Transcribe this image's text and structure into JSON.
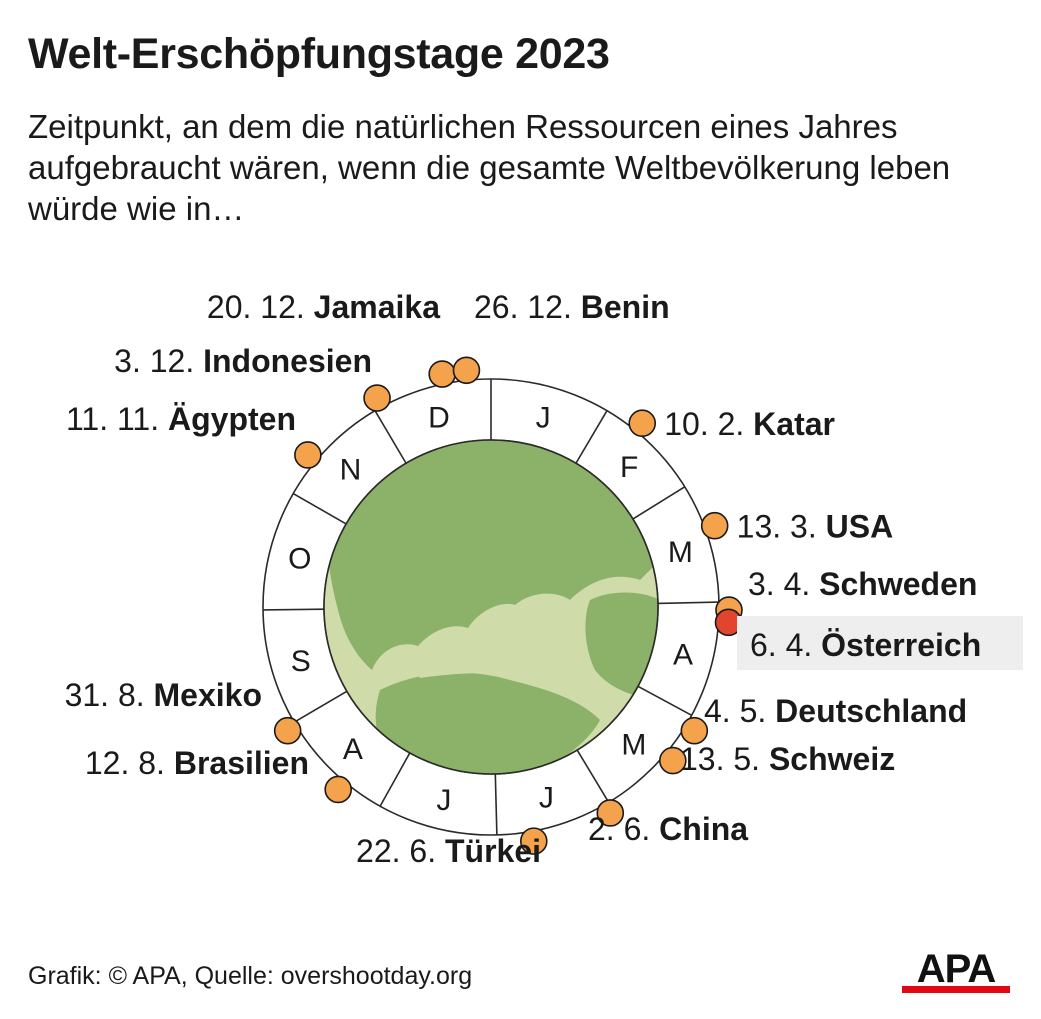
{
  "title": "Welt-Erschöpfungstage 2023",
  "subtitle": "Zeitpunkt, an dem die natürlichen Ressourcen eines Jahres aufgebraucht wären, wenn die gesamte Weltbevölkerung leben würde wie in…",
  "footer": "Grafik: © APA, Quelle: overshootday.org",
  "logo_text": "APA",
  "colors": {
    "marker": "#f4a24c",
    "highlight_marker": "#e1452f",
    "highlight_bg": "#eeeeee",
    "globe_land": "#8cb26a",
    "globe_sea": "#cfdcaa",
    "logo_bar": "#e30613"
  },
  "chart_data": {
    "type": "radial-calendar",
    "year": 2023,
    "months": [
      "J",
      "F",
      "M",
      "A",
      "M",
      "J",
      "J",
      "A",
      "S",
      "O",
      "N",
      "D"
    ],
    "points": [
      {
        "date": "10. 2.",
        "country": "Katar",
        "day_of_year": 41
      },
      {
        "date": "13. 3.",
        "country": "USA",
        "day_of_year": 72
      },
      {
        "date": "3. 4.",
        "country": "Schweden",
        "day_of_year": 93
      },
      {
        "date": "6. 4.",
        "country": "Österreich",
        "day_of_year": 96,
        "highlight": true
      },
      {
        "date": "4. 5.",
        "country": "Deutschland",
        "day_of_year": 124
      },
      {
        "date": "13. 5.",
        "country": "Schweiz",
        "day_of_year": 133
      },
      {
        "date": "2. 6.",
        "country": "China",
        "day_of_year": 153
      },
      {
        "date": "22. 6.",
        "country": "Türkei",
        "day_of_year": 173
      },
      {
        "date": "12. 8.",
        "country": "Brasilien",
        "day_of_year": 224
      },
      {
        "date": "31. 8.",
        "country": "Mexiko",
        "day_of_year": 243
      },
      {
        "date": "11. 11.",
        "country": "Ägypten",
        "day_of_year": 315
      },
      {
        "date": "3. 12.",
        "country": "Indonesien",
        "day_of_year": 337
      },
      {
        "date": "20. 12.",
        "country": "Jamaika",
        "day_of_year": 354
      },
      {
        "date": "26. 12.",
        "country": "Benin",
        "day_of_year": 360
      }
    ]
  }
}
